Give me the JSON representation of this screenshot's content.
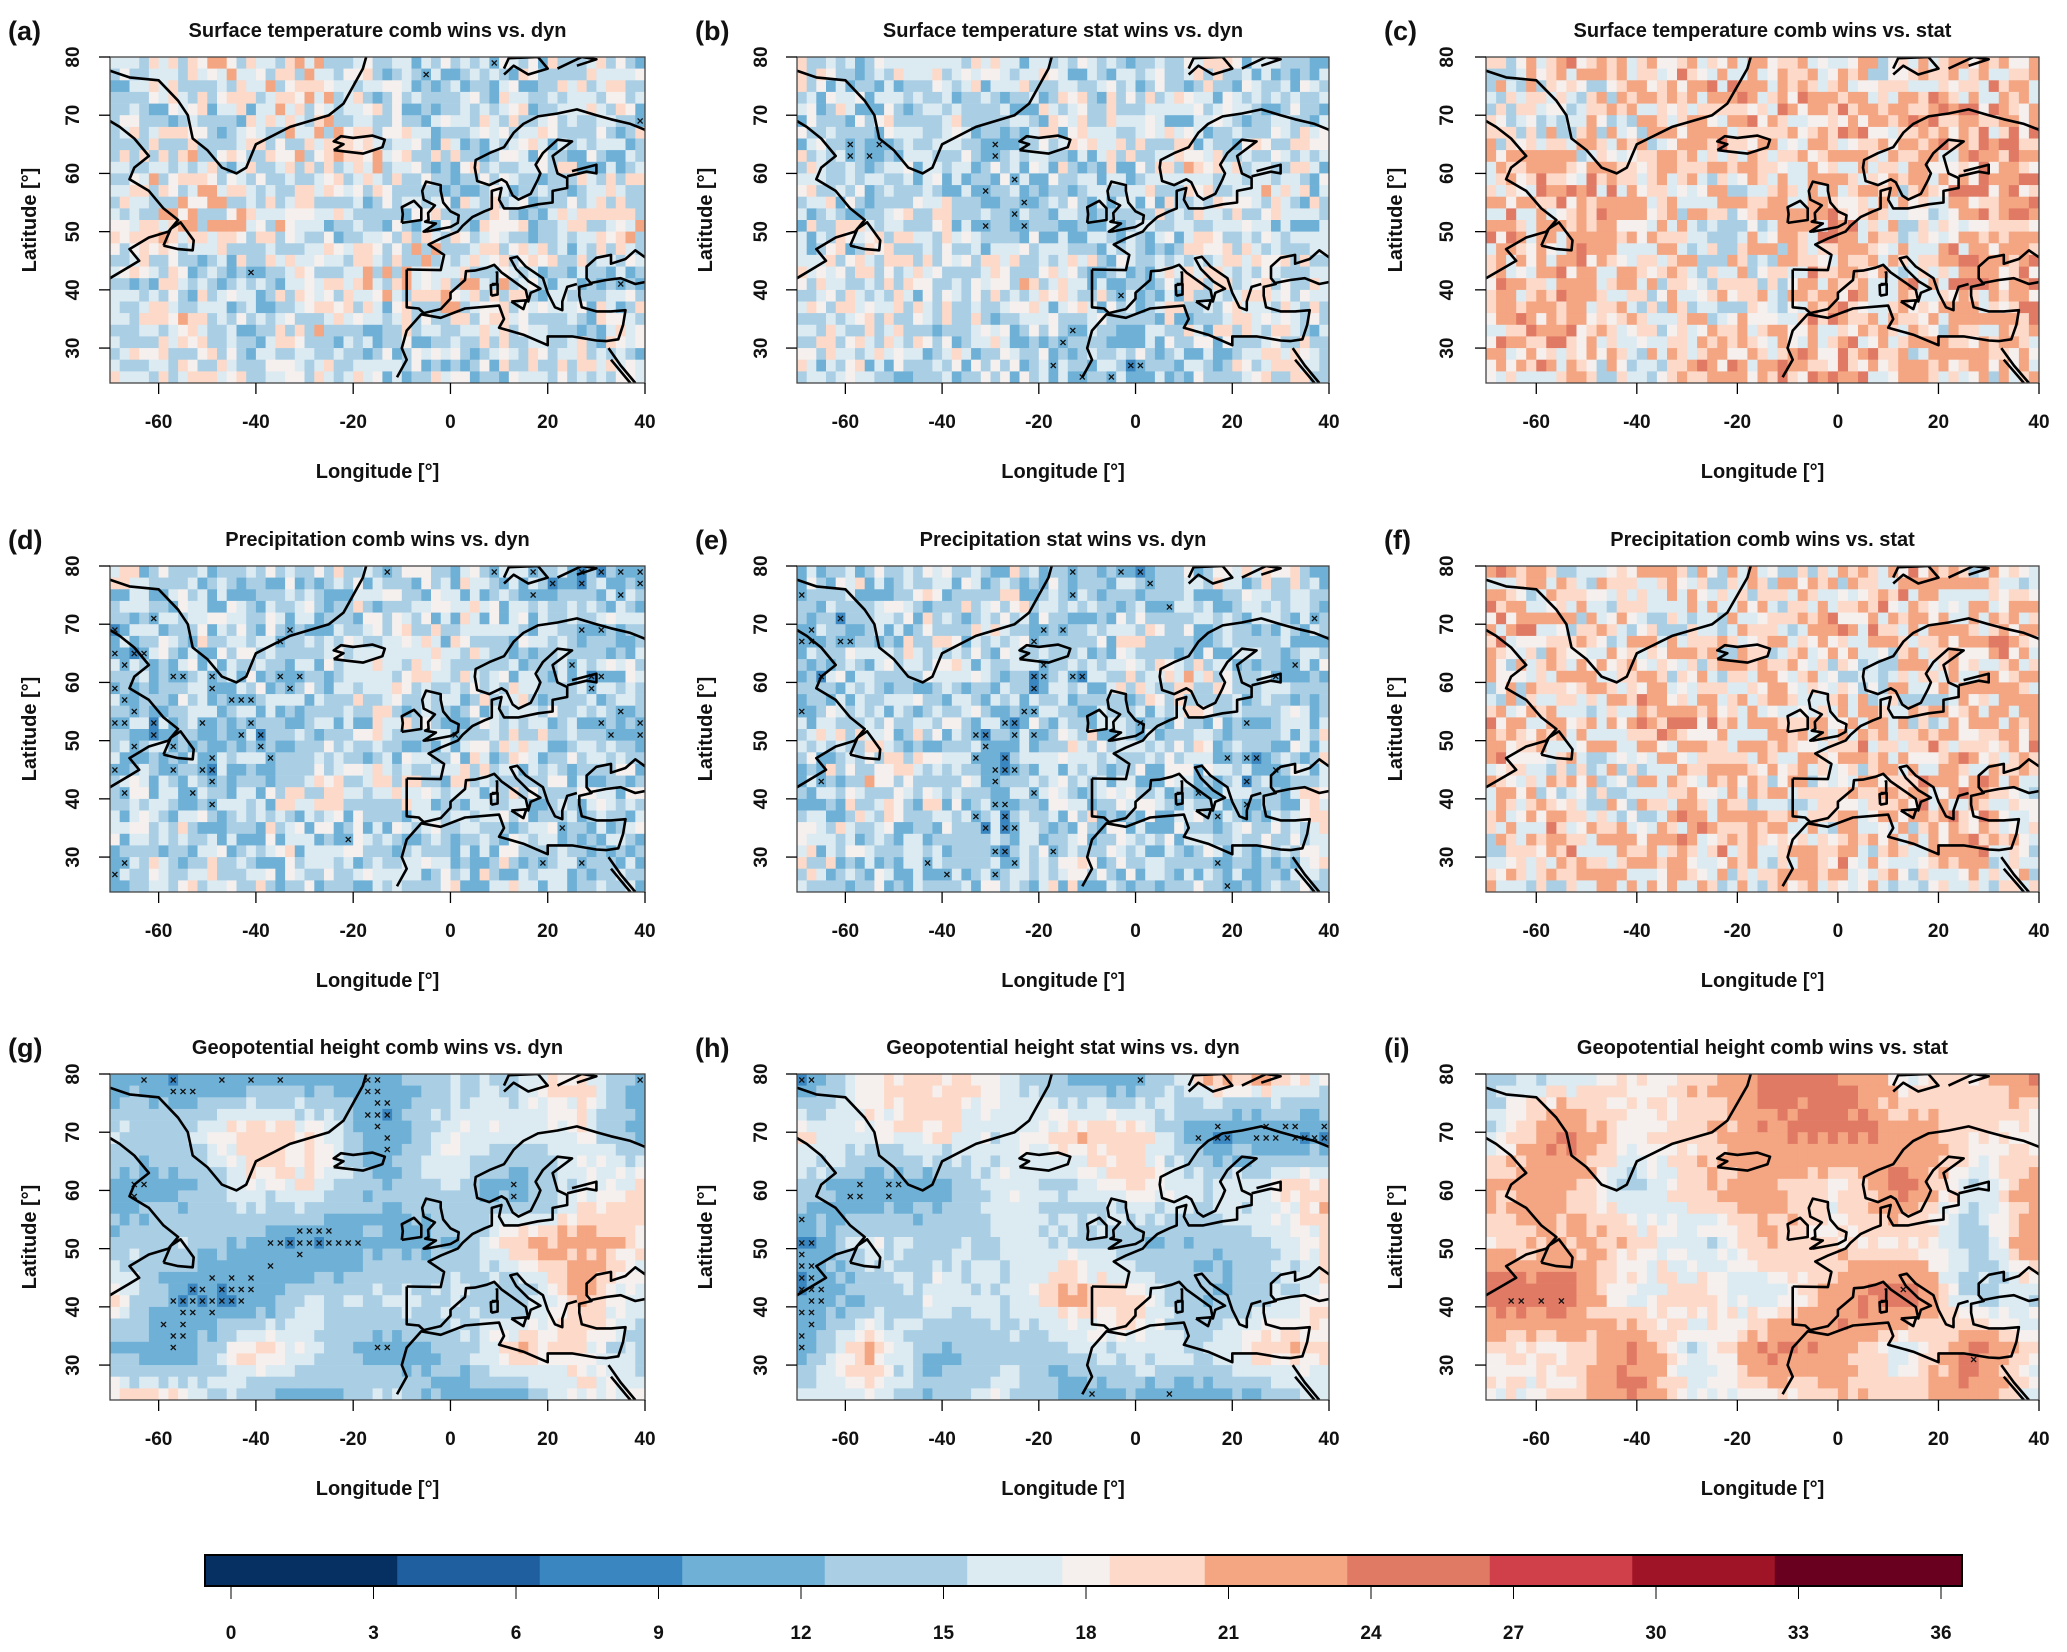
{
  "chart_data": {
    "type": "heatmap",
    "xlabel": "Longitude [°]",
    "ylabel": "Latitude [°]",
    "xlim": [
      -70,
      40
    ],
    "ylim": [
      24,
      80
    ],
    "xticks": [
      "-60",
      "-40",
      "-20",
      "0",
      "20",
      "40"
    ],
    "yticks": [
      "30",
      "40",
      "50",
      "60",
      "70",
      "80"
    ],
    "grid_resolution_deg": 2,
    "significance_marker": "×",
    "colorbar": {
      "ticks": [
        "0",
        "3",
        "6",
        "9",
        "12",
        "15",
        "18",
        "21",
        "24",
        "27",
        "30",
        "33",
        "36"
      ],
      "range": [
        0,
        36
      ],
      "breaks": [
        0,
        3.5,
        6.5,
        9.5,
        12.5,
        15.5,
        17.5,
        18.5,
        20.5,
        23.5,
        26.5,
        29.5,
        32.5,
        36
      ],
      "colors": [
        "#053061",
        "#1f5fa0",
        "#3a86c0",
        "#6fb0d6",
        "#aacfe5",
        "#dceaf2",
        "#f5f0ee",
        "#fcd9c8",
        "#f4a582",
        "#e07a65",
        "#d0404a",
        "#a01428",
        "#6a0020"
      ],
      "placement": "bottom"
    },
    "panels": [
      {
        "label": "(a)",
        "title": "Surface temperature comb wins vs. dyn",
        "approx_mean_wins": 16,
        "field": "noisy"
      },
      {
        "label": "(b)",
        "title": "Surface temperature stat wins vs. dyn",
        "approx_mean_wins": 15,
        "field": "noisy"
      },
      {
        "label": "(c)",
        "title": "Surface temperature comb wins vs. stat",
        "approx_mean_wins": 19.3,
        "field": "noisy"
      },
      {
        "label": "(d)",
        "title": "Precipitation comb wins vs. dyn",
        "approx_mean_wins": 14.8,
        "field": "noisy"
      },
      {
        "label": "(e)",
        "title": "Precipitation stat wins vs. dyn",
        "approx_mean_wins": 14.6,
        "field": "noisy"
      },
      {
        "label": "(f)",
        "title": "Precipitation comb wins vs. stat",
        "approx_mean_wins": 19,
        "field": "noisy"
      },
      {
        "label": "(g)",
        "title": "Geopotential height comb wins vs. dyn",
        "approx_mean_wins": 15,
        "field": "smooth"
      },
      {
        "label": "(h)",
        "title": "Geopotential height stat wins vs. dyn",
        "approx_mean_wins": 15.3,
        "field": "smooth"
      },
      {
        "label": "(i)",
        "title": "Geopotential height comb wins vs. stat",
        "approx_mean_wins": 20,
        "field": "smooth"
      }
    ]
  }
}
